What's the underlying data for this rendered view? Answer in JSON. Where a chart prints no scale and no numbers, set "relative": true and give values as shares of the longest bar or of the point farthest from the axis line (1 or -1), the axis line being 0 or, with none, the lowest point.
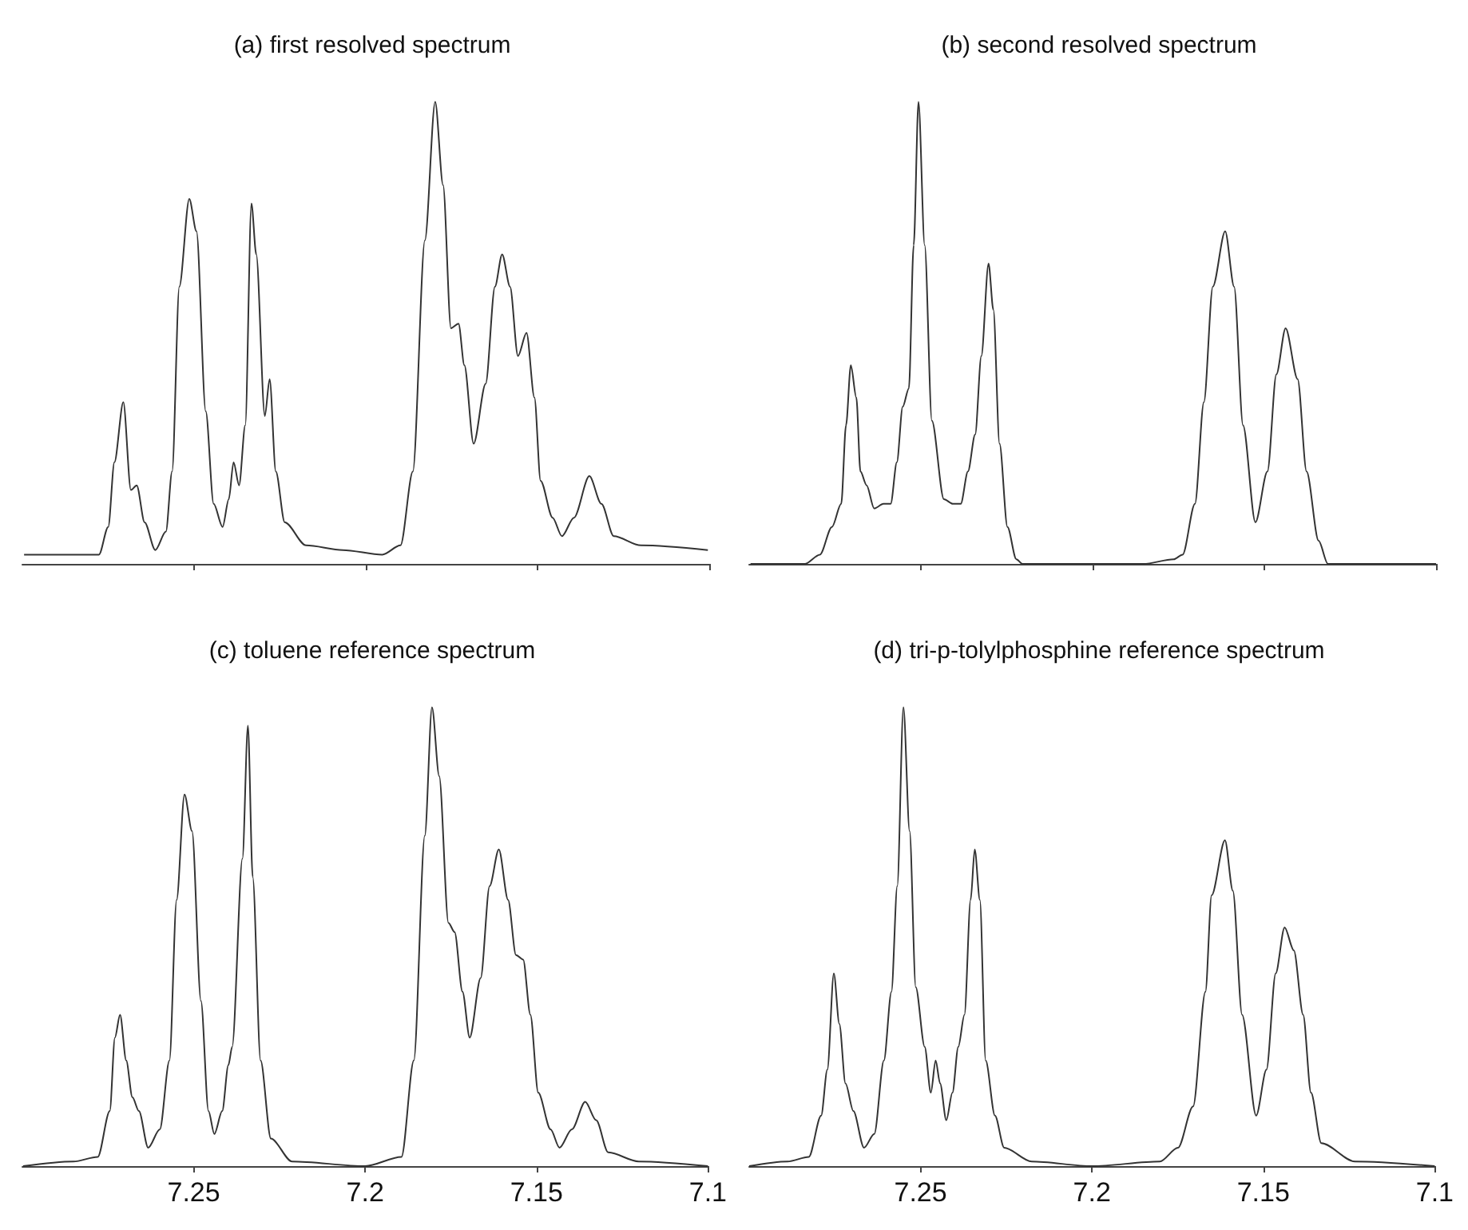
{
  "chart_data": [
    {
      "type": "line",
      "title": "(a) first resolved spectrum",
      "relative": true,
      "marker": "none",
      "color": "#333333",
      "xlim": [
        7.3,
        7.1
      ],
      "xticks": [
        {
          "value": 7.25,
          "label": null
        },
        {
          "value": 7.2,
          "label": null
        },
        {
          "value": 7.15,
          "label": null
        },
        {
          "value": 7.1,
          "label": null
        }
      ],
      "tick_labels": false,
      "x": [
        7.2995,
        7.2865,
        7.2777,
        7.275,
        7.2732,
        7.2706,
        7.2684,
        7.2667,
        7.2644,
        7.2613,
        7.2582,
        7.2564,
        7.2543,
        7.2514,
        7.2493,
        7.2466,
        7.2443,
        7.2417,
        7.2399,
        7.2385,
        7.2369,
        7.2351,
        7.2333,
        7.2319,
        7.2294,
        7.228,
        7.2262,
        7.2236,
        7.2174,
        7.2067,
        7.1952,
        7.1899,
        7.1863,
        7.1828,
        7.1798,
        7.1775,
        7.1752,
        7.173,
        7.1713,
        7.1686,
        7.1651,
        7.1624,
        7.1603,
        7.158,
        7.1557,
        7.1532,
        7.1509,
        7.1491,
        7.1456,
        7.1429,
        7.1394,
        7.1349,
        7.1314,
        7.1278,
        7.1199,
        7.1004
      ],
      "values": [
        0.02,
        0.02,
        0.02,
        0.08,
        0.22,
        0.35,
        0.16,
        0.17,
        0.09,
        0.03,
        0.07,
        0.2,
        0.6,
        0.79,
        0.72,
        0.33,
        0.13,
        0.08,
        0.14,
        0.22,
        0.17,
        0.3,
        0.78,
        0.67,
        0.32,
        0.4,
        0.2,
        0.09,
        0.04,
        0.03,
        0.02,
        0.04,
        0.2,
        0.7,
        1.0,
        0.82,
        0.51,
        0.52,
        0.43,
        0.26,
        0.39,
        0.6,
        0.67,
        0.6,
        0.45,
        0.5,
        0.36,
        0.18,
        0.1,
        0.06,
        0.1,
        0.19,
        0.13,
        0.06,
        0.04,
        0.03
      ]
    },
    {
      "type": "line",
      "title": "(b) second resolved spectrum",
      "relative": true,
      "marker": "none",
      "color": "#333333",
      "xlim": [
        7.3,
        7.1
      ],
      "xticks": [
        {
          "value": 7.25,
          "label": null
        },
        {
          "value": 7.2,
          "label": null
        },
        {
          "value": 7.15,
          "label": null
        },
        {
          "value": 7.1,
          "label": null
        }
      ],
      "tick_labels": false,
      "x": [
        7.2996,
        7.2838,
        7.2794,
        7.2759,
        7.2732,
        7.2718,
        7.2704,
        7.2688,
        7.2676,
        7.2658,
        7.2636,
        7.2609,
        7.2588,
        7.257,
        7.2553,
        7.2535,
        7.2521,
        7.2507,
        7.2489,
        7.2468,
        7.2433,
        7.2407,
        7.2384,
        7.2363,
        7.2342,
        7.2324,
        7.2303,
        7.2289,
        7.2271,
        7.2248,
        7.2222,
        7.2204,
        7.1852,
        7.1764,
        7.1738,
        7.1702,
        7.1676,
        7.165,
        7.1614,
        7.1588,
        7.1562,
        7.1526,
        7.1491,
        7.1465,
        7.1438,
        7.1403,
        7.1377,
        7.1342,
        7.1315,
        7.1
      ],
      "values": [
        0,
        0,
        0.02,
        0.08,
        0.13,
        0.3,
        0.43,
        0.36,
        0.2,
        0.17,
        0.12,
        0.13,
        0.13,
        0.22,
        0.34,
        0.38,
        0.69,
        1.0,
        0.69,
        0.31,
        0.14,
        0.13,
        0.13,
        0.2,
        0.28,
        0.45,
        0.65,
        0.55,
        0.26,
        0.08,
        0.01,
        0,
        0,
        0.01,
        0.02,
        0.13,
        0.35,
        0.6,
        0.72,
        0.6,
        0.3,
        0.09,
        0.2,
        0.41,
        0.51,
        0.4,
        0.2,
        0.05,
        0,
        0
      ]
    },
    {
      "type": "line",
      "title": "(c) toluene reference spectrum",
      "relative": true,
      "marker": "none",
      "color": "#333333",
      "xlim": [
        7.3,
        7.1
      ],
      "xticks": [
        7.25,
        7.2,
        7.15,
        7.1
      ],
      "tick_labels": "x",
      "x": [
        7.2998,
        7.2851,
        7.278,
        7.2745,
        7.273,
        7.2715,
        7.2697,
        7.2679,
        7.266,
        7.2633,
        7.2599,
        7.2571,
        7.255,
        7.2527,
        7.2505,
        7.2479,
        7.2457,
        7.244,
        7.2417,
        7.2399,
        7.2388,
        7.2358,
        7.2342,
        7.2328,
        7.2305,
        7.2275,
        7.2213,
        7.2,
        7.1894,
        7.1858,
        7.1826,
        7.1805,
        7.1784,
        7.1757,
        7.1739,
        7.1716,
        7.1695,
        7.1663,
        7.1637,
        7.161,
        7.1583,
        7.156,
        7.1539,
        7.1518,
        7.1495,
        7.1459,
        7.1433,
        7.1397,
        7.1358,
        7.1326,
        7.1291,
        7.1202,
        7.1
      ],
      "values": [
        0,
        0.01,
        0.02,
        0.12,
        0.28,
        0.33,
        0.23,
        0.15,
        0.12,
        0.04,
        0.08,
        0.23,
        0.58,
        0.81,
        0.73,
        0.36,
        0.12,
        0.07,
        0.12,
        0.22,
        0.26,
        0.67,
        0.96,
        0.63,
        0.23,
        0.06,
        0.01,
        0,
        0.02,
        0.23,
        0.72,
        1.0,
        0.85,
        0.53,
        0.51,
        0.38,
        0.28,
        0.41,
        0.61,
        0.69,
        0.58,
        0.46,
        0.45,
        0.33,
        0.16,
        0.08,
        0.04,
        0.08,
        0.14,
        0.1,
        0.03,
        0.01,
        0
      ]
    },
    {
      "type": "line",
      "title": "(d) tri-p-tolylphosphine reference spectrum",
      "relative": true,
      "marker": "none",
      "color": "#333333",
      "xlim": [
        7.3,
        7.1
      ],
      "xticks": [
        7.25,
        7.2,
        7.15,
        7.1
      ],
      "tick_labels": "x",
      "x": [
        7.3,
        7.2888,
        7.2826,
        7.279,
        7.2772,
        7.2753,
        7.2737,
        7.2719,
        7.2696,
        7.2665,
        7.2635,
        7.2607,
        7.2585,
        7.2568,
        7.255,
        7.2532,
        7.2514,
        7.2488,
        7.247,
        7.2456,
        7.2443,
        7.2425,
        7.2407,
        7.239,
        7.2372,
        7.2354,
        7.2342,
        7.2327,
        7.231,
        7.2283,
        7.2256,
        7.2176,
        7.2,
        7.1802,
        7.1749,
        7.1705,
        7.1669,
        7.1651,
        7.1612,
        7.1589,
        7.1562,
        7.1521,
        7.1491,
        7.1464,
        7.1438,
        7.1411,
        7.1384,
        7.1361,
        7.1331,
        7.1233,
        7.1
      ],
      "values": [
        0,
        0.01,
        0.02,
        0.11,
        0.21,
        0.42,
        0.31,
        0.18,
        0.12,
        0.04,
        0.07,
        0.23,
        0.38,
        0.61,
        1.0,
        0.73,
        0.39,
        0.26,
        0.16,
        0.23,
        0.18,
        0.1,
        0.16,
        0.26,
        0.33,
        0.58,
        0.69,
        0.58,
        0.23,
        0.11,
        0.04,
        0.01,
        0,
        0.01,
        0.04,
        0.13,
        0.38,
        0.59,
        0.71,
        0.6,
        0.33,
        0.11,
        0.21,
        0.42,
        0.52,
        0.47,
        0.33,
        0.16,
        0.05,
        0.01,
        0
      ]
    }
  ]
}
